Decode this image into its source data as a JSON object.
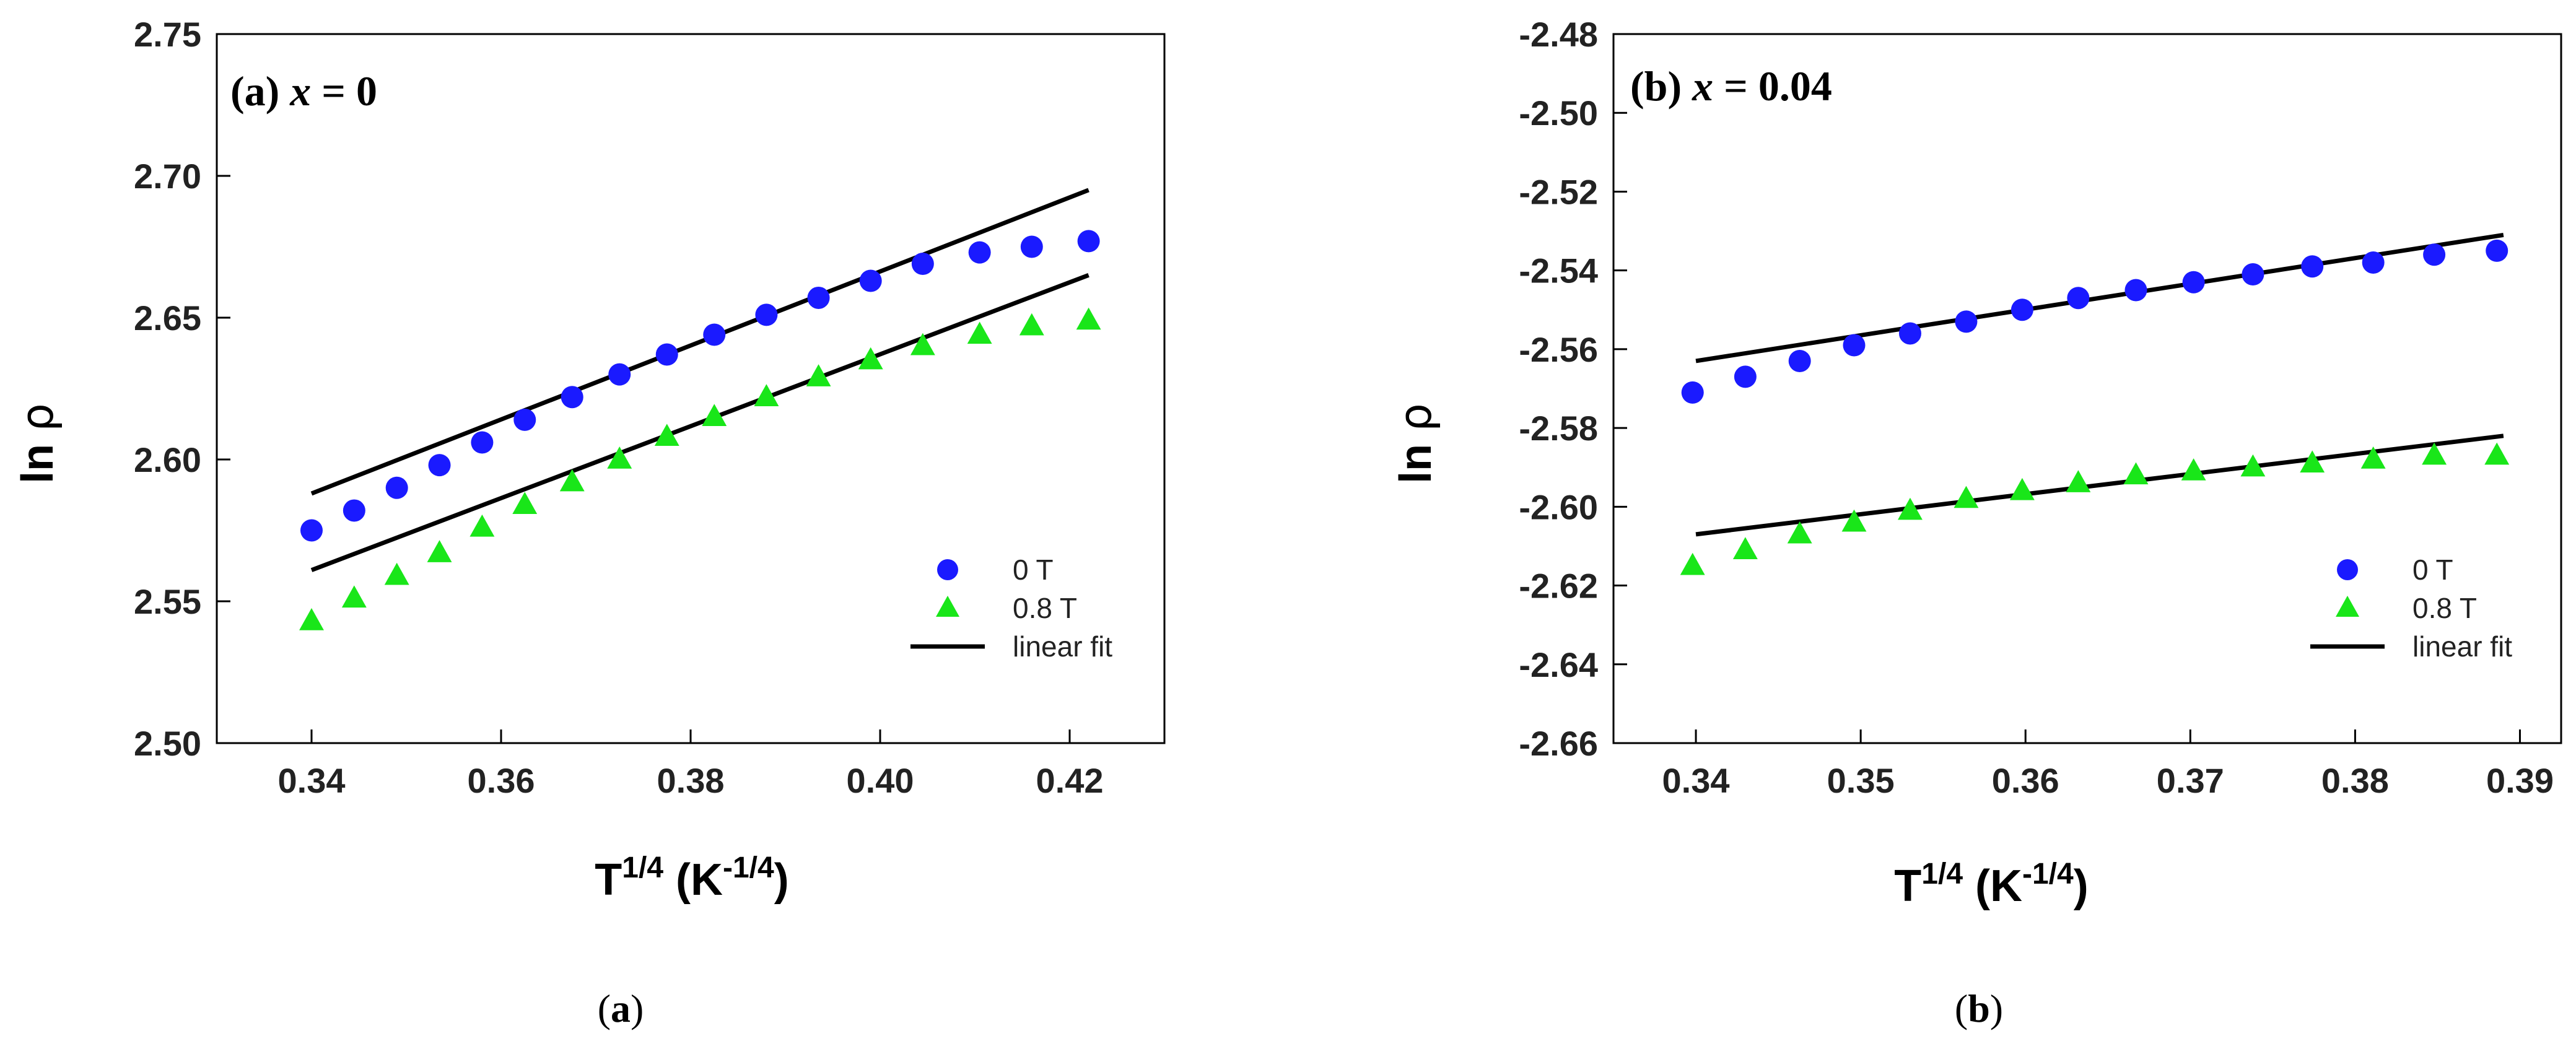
{
  "chart_data": [
    {
      "type": "scatter",
      "panel_label": "(a)",
      "title_prefix": "(a)",
      "title_var": "x",
      "title_suffix": "= 0",
      "caption_paren_open": "(",
      "caption_letter": "a",
      "caption_paren_close": ")",
      "xlabel_base": "T",
      "xlabel_sup": "1/4",
      "xlabel_unit_open": " (K",
      "xlabel_unit_sup": "-1/4",
      "xlabel_unit_close": ")",
      "ylabel_base": "ln ",
      "ylabel_symbol": "ρ",
      "xlim": [
        0.33,
        0.43
      ],
      "ylim": [
        2.5,
        2.75
      ],
      "xticks": [
        "0.34",
        "0.36",
        "0.38",
        "0.40",
        "0.42"
      ],
      "xtick_values": [
        0.34,
        0.36,
        0.38,
        0.4,
        0.42
      ],
      "yticks": [
        "2.50",
        "2.55",
        "2.60",
        "2.65",
        "2.70",
        "2.75"
      ],
      "ytick_values": [
        2.5,
        2.55,
        2.6,
        2.65,
        2.7,
        2.75
      ],
      "legend_position": "bottom-right",
      "series": [
        {
          "name": "0 T",
          "marker": "circle",
          "color": "#1a1aff",
          "x": [
            0.34,
            0.3445,
            0.349,
            0.3535,
            0.358,
            0.3625,
            0.3675,
            0.3725,
            0.3775,
            0.3825,
            0.388,
            0.3935,
            0.399,
            0.4045,
            0.4105,
            0.416,
            0.422
          ],
          "y": [
            2.575,
            2.582,
            2.59,
            2.598,
            2.606,
            2.614,
            2.622,
            2.63,
            2.637,
            2.644,
            2.651,
            2.657,
            2.663,
            2.669,
            2.673,
            2.675,
            2.677
          ]
        },
        {
          "name": "0.8 T",
          "marker": "triangle",
          "color": "#19e619",
          "x": [
            0.34,
            0.3445,
            0.349,
            0.3535,
            0.358,
            0.3625,
            0.3675,
            0.3725,
            0.3775,
            0.3825,
            0.388,
            0.3935,
            0.399,
            0.4045,
            0.4105,
            0.416,
            0.422
          ],
          "y": [
            2.543,
            2.551,
            2.559,
            2.567,
            2.576,
            2.584,
            2.592,
            2.6,
            2.608,
            2.615,
            2.622,
            2.629,
            2.635,
            2.64,
            2.644,
            2.647,
            2.649
          ]
        }
      ],
      "fits": [
        {
          "name": "linear fit 0 T",
          "x": [
            0.34,
            0.422
          ],
          "y": [
            2.588,
            2.695
          ]
        },
        {
          "name": "linear fit 0.8 T",
          "x": [
            0.34,
            0.422
          ],
          "y": [
            2.561,
            2.665
          ]
        }
      ],
      "legend": [
        {
          "label": "0 T",
          "marker": "circle",
          "color": "#1a1aff"
        },
        {
          "label": "0.8 T",
          "marker": "triangle",
          "color": "#19e619"
        },
        {
          "label": "linear fit",
          "marker": "line",
          "color": "#000000"
        }
      ]
    },
    {
      "type": "scatter",
      "panel_label": "(b)",
      "title_prefix": "(b)",
      "title_var": "x",
      "title_suffix": "= 0.04",
      "caption_paren_open": "(",
      "caption_letter": "b",
      "caption_paren_close": ")",
      "xlabel_base": "T",
      "xlabel_sup": "1/4",
      "xlabel_unit_open": " (K",
      "xlabel_unit_sup": "-1/4",
      "xlabel_unit_close": ")",
      "ylabel_base": "ln ",
      "ylabel_symbol": "ρ",
      "xlim": [
        0.335,
        0.3925
      ],
      "ylim": [
        -2.66,
        -2.48
      ],
      "xticks": [
        "0.34",
        "0.35",
        "0.36",
        "0.37",
        "0.38",
        "0.39"
      ],
      "xtick_values": [
        0.34,
        0.35,
        0.36,
        0.37,
        0.38,
        0.39
      ],
      "yticks": [
        "-2.66",
        "-2.64",
        "-2.62",
        "-2.60",
        "-2.58",
        "-2.56",
        "-2.54",
        "-2.52",
        "-2.50",
        "-2.48"
      ],
      "ytick_values": [
        -2.66,
        -2.64,
        -2.62,
        -2.6,
        -2.58,
        -2.56,
        -2.54,
        -2.52,
        -2.5,
        -2.48
      ],
      "legend_position": "bottom-right",
      "series": [
        {
          "name": "0 T",
          "marker": "circle",
          "color": "#1a1aff",
          "x": [
            0.3398,
            0.343,
            0.3463,
            0.3496,
            0.353,
            0.3564,
            0.3598,
            0.3632,
            0.3667,
            0.3702,
            0.3738,
            0.3774,
            0.3811,
            0.3848,
            0.3886
          ],
          "y": [
            -2.571,
            -2.567,
            -2.563,
            -2.559,
            -2.556,
            -2.553,
            -2.55,
            -2.547,
            -2.545,
            -2.543,
            -2.541,
            -2.539,
            -2.538,
            -2.536,
            -2.535
          ]
        },
        {
          "name": "0.8 T",
          "marker": "triangle",
          "color": "#19e619",
          "x": [
            0.3398,
            0.343,
            0.3463,
            0.3496,
            0.353,
            0.3564,
            0.3598,
            0.3632,
            0.3667,
            0.3702,
            0.3738,
            0.3774,
            0.3811,
            0.3848,
            0.3886
          ],
          "y": [
            -2.615,
            -2.611,
            -2.607,
            -2.604,
            -2.601,
            -2.598,
            -2.596,
            -2.594,
            -2.592,
            -2.591,
            -2.59,
            -2.589,
            -2.588,
            -2.587,
            -2.587
          ]
        }
      ],
      "fits": [
        {
          "name": "linear fit 0 T",
          "x": [
            0.34,
            0.389
          ],
          "y": [
            -2.563,
            -2.531
          ]
        },
        {
          "name": "linear fit 0.8 T",
          "x": [
            0.34,
            0.389
          ],
          "y": [
            -2.607,
            -2.582
          ]
        }
      ],
      "legend": [
        {
          "label": "0 T",
          "marker": "circle",
          "color": "#1a1aff"
        },
        {
          "label": "0.8 T",
          "marker": "triangle",
          "color": "#19e619"
        },
        {
          "label": "linear fit",
          "marker": "line",
          "color": "#000000"
        }
      ]
    }
  ]
}
